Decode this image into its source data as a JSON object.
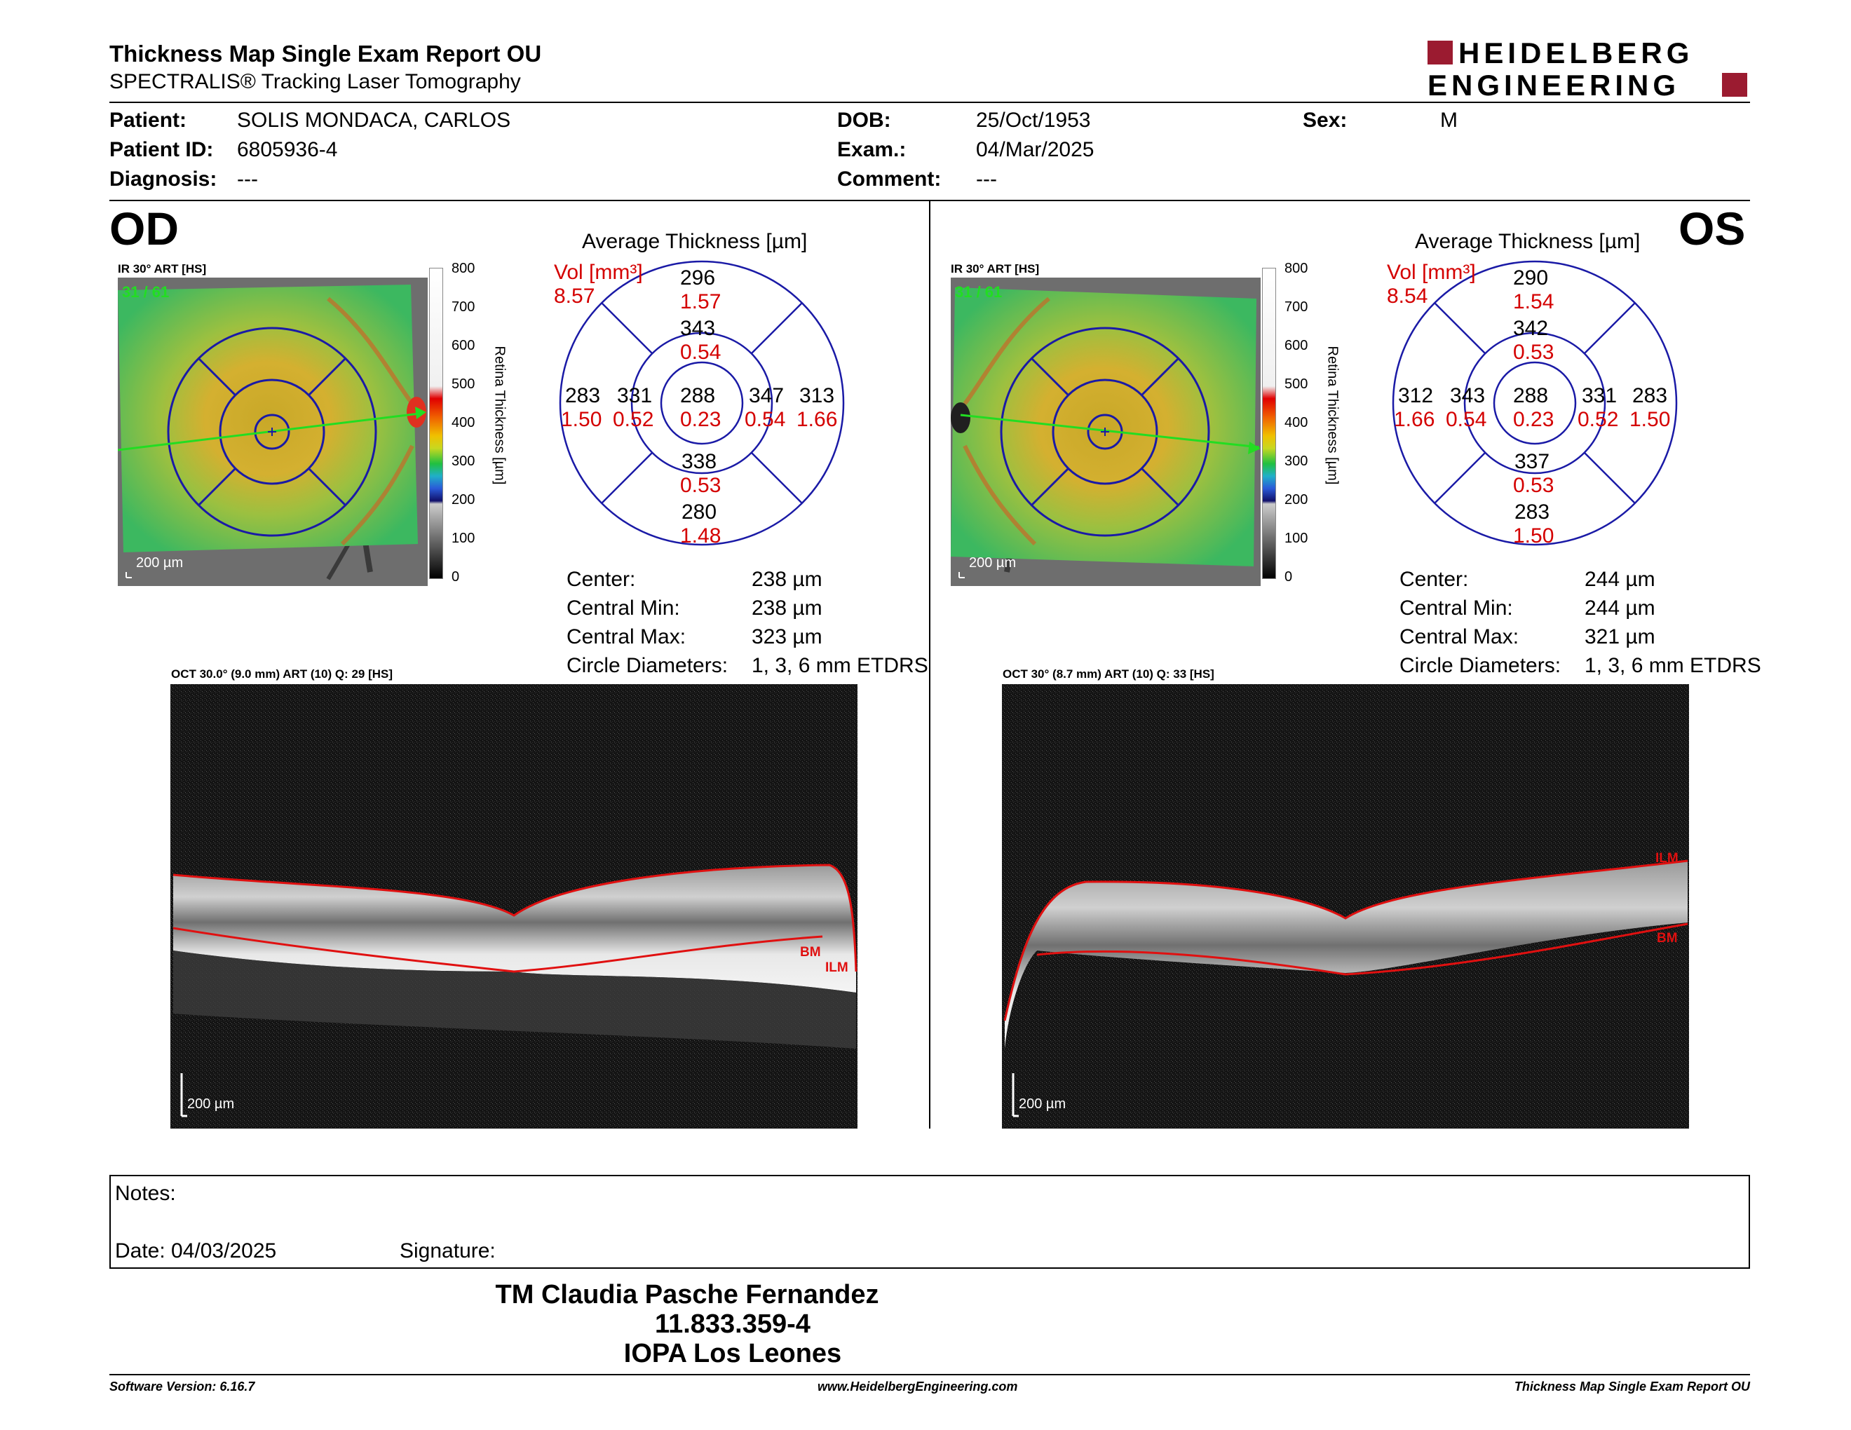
{
  "header": {
    "title": "Thickness Map Single Exam Report OU",
    "subtitle": "SPECTRALIS® Tracking Laser Tomography",
    "logo_line1": "HEIDELBERG",
    "logo_line2": "ENGINEERING"
  },
  "patient": {
    "patient_label": "Patient:",
    "patient_value": "SOLIS MONDACA, CARLOS",
    "id_label": "Patient ID:",
    "id_value": "6805936-4",
    "diagnosis_label": "Diagnosis:",
    "diagnosis_value": "---",
    "dob_label": "DOB:",
    "dob_value": "25/Oct/1953",
    "exam_label": "Exam.:",
    "exam_value": "04/Mar/2025",
    "comment_label": "Comment:",
    "comment_value": "---",
    "sex_label": "Sex:",
    "sex_value": "M"
  },
  "colorbar": {
    "ticks": [
      "800",
      "700",
      "600",
      "500",
      "400",
      "300",
      "200",
      "100",
      "0"
    ],
    "label": "Retina Thickness [µm]"
  },
  "od": {
    "eye": "OD",
    "ir_title": "IR 30° ART [HS]",
    "frames": "31 / 61",
    "scale": "200 µm",
    "avg_title": "Average Thickness [µm]",
    "vol_label": "Vol [mm³]",
    "vol_value": "8.57",
    "grid": {
      "sup_outer": "296",
      "sup_outer_vol": "1.57",
      "sup_inner": "343",
      "sup_inner_vol": "0.54",
      "center": "288",
      "center_vol": "0.23",
      "left_outer": "283",
      "left_outer_vol": "1.50",
      "left_inner": "331",
      "left_inner_vol": "0.52",
      "right_inner": "347",
      "right_inner_vol": "0.54",
      "right_outer": "313",
      "right_outer_vol": "1.66",
      "inf_inner": "338",
      "inf_inner_vol": "0.53",
      "inf_outer": "280",
      "inf_outer_vol": "1.48"
    },
    "stats": {
      "center_label": "Center:",
      "center_value": "238 µm",
      "min_label": "Central Min:",
      "min_value": "238 µm",
      "max_label": "Central Max:",
      "max_value": "323 µm",
      "diam_label": "Circle Diameters:",
      "diam_value": "1, 3, 6 mm ETDRS"
    },
    "oct_title": "OCT 30.0° (9.0 mm) ART (10) Q: 29 [HS]",
    "oct_scale": "200 µm",
    "label_bm": "BM",
    "label_ilm": "ILM"
  },
  "os": {
    "eye": "OS",
    "ir_title": "IR 30° ART [HS]",
    "frames": "31 / 61",
    "scale": "200 µm",
    "avg_title": "Average Thickness [µm]",
    "vol_label": "Vol [mm³]",
    "vol_value": "8.54",
    "grid": {
      "sup_outer": "290",
      "sup_outer_vol": "1.54",
      "sup_inner": "342",
      "sup_inner_vol": "0.53",
      "center": "288",
      "center_vol": "0.23",
      "left_outer": "312",
      "left_outer_vol": "1.66",
      "left_inner": "343",
      "left_inner_vol": "0.54",
      "right_inner": "331",
      "right_inner_vol": "0.52",
      "right_outer": "283",
      "right_outer_vol": "1.50",
      "inf_inner": "337",
      "inf_inner_vol": "0.53",
      "inf_outer": "283",
      "inf_outer_vol": "1.50"
    },
    "stats": {
      "center_label": "Center:",
      "center_value": "244 µm",
      "min_label": "Central Min:",
      "min_value": "244 µm",
      "max_label": "Central Max:",
      "max_value": "321 µm",
      "diam_label": "Circle Diameters:",
      "diam_value": "1, 3, 6 mm ETDRS"
    },
    "oct_title": "OCT 30° (8.7 mm) ART (10) Q: 33 [HS]",
    "oct_scale": "200 µm",
    "label_bm": "BM",
    "label_ilm": "ILM"
  },
  "notes": {
    "notes_label": "Notes:",
    "date_label": "Date: 04/03/2025",
    "signature_label": "Signature:"
  },
  "signer": {
    "name": "TM Claudia Pasche Fernandez",
    "id": "11.833.359-4",
    "clinic": "IOPA Los Leones"
  },
  "footer": {
    "software": "Software Version: 6.16.7",
    "website": "www.HeidelbergEngineering.com",
    "report": "Thickness Map Single Exam Report OU"
  },
  "colors": {
    "brand_red": "#9b1b30",
    "grid_blue": "#1a1aa6",
    "vol_red": "#d40000",
    "frames_green": "#22dd22"
  }
}
